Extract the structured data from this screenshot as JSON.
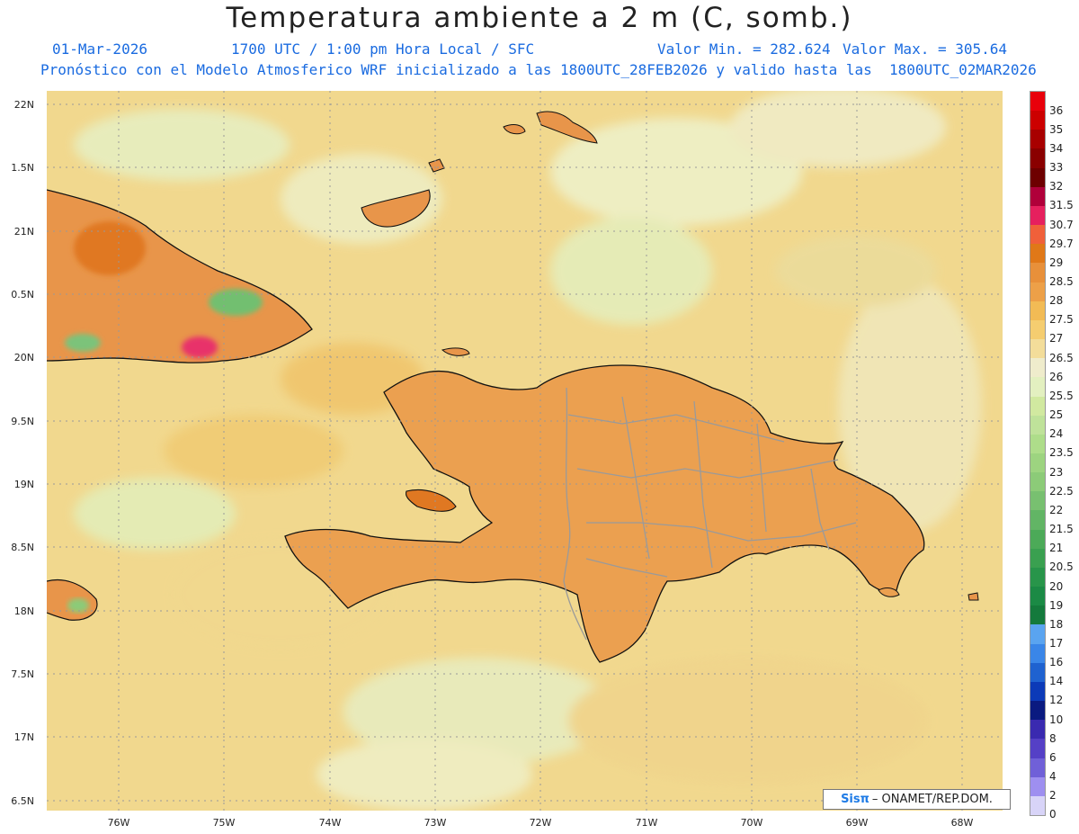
{
  "header": {
    "title": "Temperatura ambiente a 2 m (C, somb.)",
    "date": "01-Mar-2026",
    "time": "1700 UTC / 1:00 pm Hora Local / SFC",
    "min": "Valor Min. = 282.624",
    "max": "Valor Max. = 305.64",
    "model": "Pronóstico con el Modelo Atmosferico WRF inicializado a las 1800UTC_28FEB2026 y valido hasta las  1800UTC_02MAR2026"
  },
  "credit": {
    "logo": "Sisπ",
    "text": "– ONAMET/REP.DOM."
  },
  "lat_labels": [
    "22N",
    "1.5N",
    "21N",
    "0.5N",
    "20N",
    "9.5N",
    "19N",
    "8.5N",
    "18N",
    "7.5N",
    "17N",
    "6.5N"
  ],
  "lon_labels": [
    "76W",
    "75W",
    "74W",
    "73W",
    "72W",
    "71W",
    "70W",
    "69W",
    "68W"
  ],
  "colorbar": {
    "labels": [
      "36",
      "35",
      "34",
      "33",
      "32",
      "31.5",
      "30.7",
      "29.7",
      "29",
      "28.5",
      "28",
      "27.5",
      "27",
      "26.5",
      "26",
      "25.5",
      "25",
      "24",
      "23.5",
      "23",
      "22.5",
      "22",
      "21.5",
      "21",
      "20.5",
      "20",
      "19",
      "18",
      "17",
      "16",
      "14",
      "12",
      "10",
      "8",
      "6",
      "4",
      "2",
      "0"
    ],
    "colors": [
      "#e8000b",
      "#cc0000",
      "#a80000",
      "#8a0000",
      "#6e0000",
      "#b0003a",
      "#e6205e",
      "#f0603a",
      "#e07818",
      "#e8903a",
      "#eda048",
      "#f2bb55",
      "#f5cd70",
      "#f3dd9a",
      "#efeccc",
      "#e3f0c0",
      "#d1e9a0",
      "#bfe29a",
      "#aedd8a",
      "#9dd480",
      "#8ccb78",
      "#78c070",
      "#62b565",
      "#4caa58",
      "#3aa050",
      "#28954a",
      "#1b8a45",
      "#147a3c",
      "#5aa4f0",
      "#3a86e8",
      "#1f62d0",
      "#0c3ab8",
      "#0a1a80",
      "#3a2ab0",
      "#5540c6",
      "#7060d8",
      "#9e8ff0",
      "#d8d4f8"
    ]
  },
  "colors": {
    "ocean": "#f1d88e",
    "ocean_light": "#f3e2a6",
    "land_warm": "#eba050",
    "land_hot": "#e07822",
    "land_hottest": "#e8306a",
    "highland": "#6cbd6e",
    "highland_cool": "#2a8a50",
    "mountain_peak": "#2360d8",
    "coast": "#111111",
    "border": "#9a9a9a",
    "accent_text": "#1a6be0"
  }
}
